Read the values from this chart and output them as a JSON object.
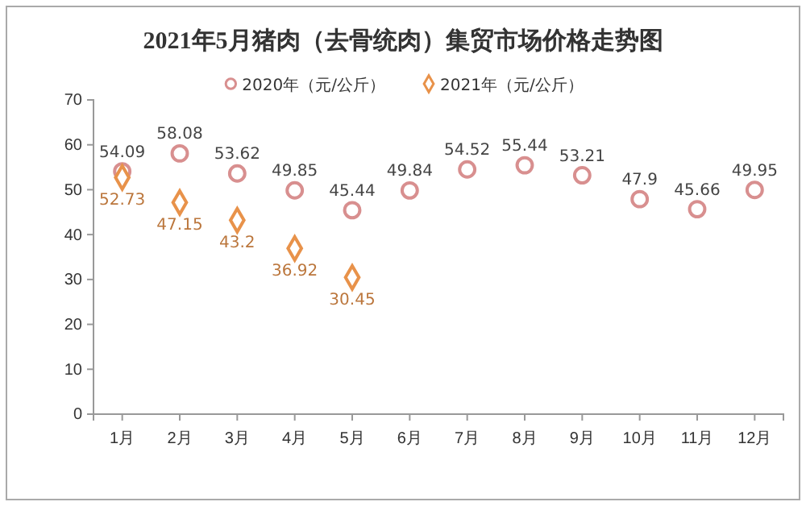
{
  "chart_data": {
    "type": "scatter",
    "title": "2021年5月猪肉（去骨统肉）集贸市场价格走势图",
    "categories": [
      "1月",
      "2月",
      "3月",
      "4月",
      "5月",
      "6月",
      "7月",
      "8月",
      "9月",
      "10月",
      "11月",
      "12月"
    ],
    "series": [
      {
        "name": "2020年（元/公斤）",
        "color": "#d88f8f",
        "marker": "circle",
        "values": [
          54.09,
          58.08,
          53.62,
          49.85,
          45.44,
          49.84,
          54.52,
          55.44,
          53.21,
          47.9,
          45.66,
          49.95
        ]
      },
      {
        "name": "2021年（元/公斤）",
        "color": "#e8924a",
        "marker": "diamond",
        "values": [
          52.73,
          47.15,
          43.2,
          36.92,
          30.45,
          null,
          null,
          null,
          null,
          null,
          null,
          null
        ]
      }
    ],
    "ylim": [
      0,
      70
    ],
    "yticks": [
      0,
      10,
      20,
      30,
      40,
      50,
      60,
      70
    ],
    "grid": false,
    "legend": "top",
    "data_labels": true
  }
}
